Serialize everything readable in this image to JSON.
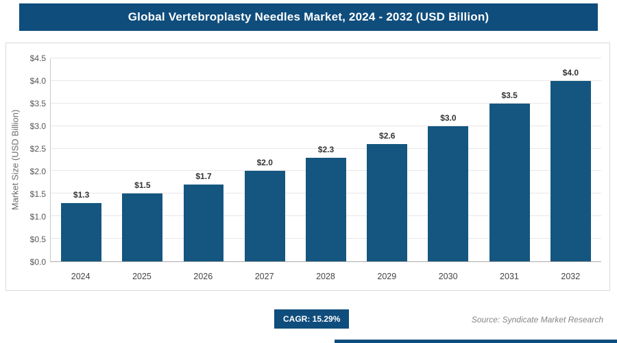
{
  "header": {
    "title": "Global Vertebroplasty Needles Market, 2024 - 2032 (USD Billion)"
  },
  "chart_data": {
    "type": "bar",
    "title": "Global Vertebroplasty Needles Market, 2024 - 2032 (USD Billion)",
    "categories": [
      "2024",
      "2025",
      "2026",
      "2027",
      "2028",
      "2029",
      "2030",
      "2031",
      "2032"
    ],
    "values": [
      1.3,
      1.5,
      1.7,
      2.0,
      2.3,
      2.6,
      3.0,
      3.5,
      4.0
    ],
    "bar_labels": [
      "$1.3",
      "$1.5",
      "$1.7",
      "$2.0",
      "$2.3",
      "$2.6",
      "$3.0",
      "$3.5",
      "$4.0"
    ],
    "xlabel": "",
    "ylabel": "Market Size (USD Billion)",
    "ylim": [
      0,
      4.5
    ],
    "grid": true,
    "legend": "none",
    "y_ticks": [
      {
        "value": 0.0,
        "label": "$0.0"
      },
      {
        "value": 0.5,
        "label": "$0.5"
      },
      {
        "value": 1.0,
        "label": "$1.0"
      },
      {
        "value": 1.5,
        "label": "$1.5"
      },
      {
        "value": 2.0,
        "label": "$2.0"
      },
      {
        "value": 2.5,
        "label": "$2.5"
      },
      {
        "value": 3.0,
        "label": "$3.0"
      },
      {
        "value": 3.5,
        "label": "$3.5"
      },
      {
        "value": 4.0,
        "label": "$4.0"
      },
      {
        "value": 4.5,
        "label": "$4.5"
      }
    ]
  },
  "footer": {
    "cagr_label": "CAGR: 15.29%",
    "source": "Source: Syndicate Market Research"
  },
  "colors": {
    "accent_blue": "#0f4d7c",
    "bar_blue": "#14567f"
  }
}
